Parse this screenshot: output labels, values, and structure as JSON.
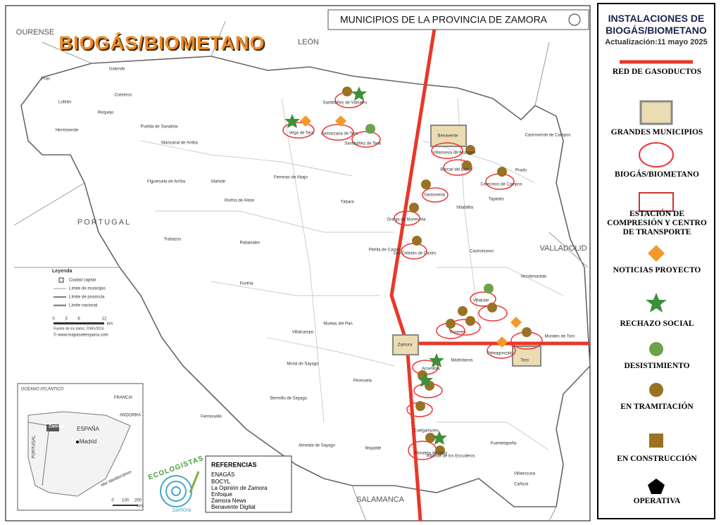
{
  "map_title": "MUNICIPIOS DE LA PROVINCIA DE ZAMORA",
  "overlay_title": "BIOGÁS/BIOMETANO",
  "regions": [
    "OURENSE",
    "LEÓN",
    "PORTUGAL",
    "VALLADOLID",
    "SALAMANCA"
  ],
  "panel": {
    "title": "INSTALACIONES DE BIOGÁS/BIOMETANO",
    "update": "Actualización:11 mayo 2025",
    "legend": [
      "RED DE GASODUCTOS",
      "GRANDES MUNICIPIOS",
      "BIOGÁS/BIOMETANO",
      "ESTACIÓN DE COMPRESIÓN Y CENTRO DE TRANSPORTE",
      "NOTICIAS PROYECTO",
      "RECHAZO SOCIAL",
      "DESISTIMIENTO",
      "EN TRAMITACIÓN",
      "EN CONSTRUCCIÓN",
      "OPERATIVA"
    ]
  },
  "map_legend": {
    "title": "Leyenda",
    "items": [
      "Ciudad capital",
      "Límite de municipio",
      "Límite de provincia",
      "Límite nacional"
    ],
    "scale": [
      "0",
      "3",
      "6",
      "12"
    ],
    "unit": "km",
    "source": "Fuente de los datos: CNIG/2016",
    "site": "© www.mapasdeespana.com"
  },
  "inset": {
    "labels": [
      "OCÉANO ATLÁNTICO",
      "FRANCIA",
      "ANDORRA",
      "PORTUGAL",
      "ESPAÑA",
      "Zamora",
      "Madrid",
      "Mar Mediterráneo"
    ],
    "scale": [
      "0",
      "100",
      "200"
    ],
    "unit": "km"
  },
  "references": {
    "title": "REFERENCIAS",
    "items": [
      "ENAGÁS",
      "BOCYL",
      "La Opinión de Zamora",
      "Enfoque",
      "Zamora News",
      "Benavente Digital"
    ]
  },
  "logo": {
    "text": "ECOLOGISTAS",
    "sub": "zamora"
  },
  "municipalities": [
    "Pías",
    "Lubián",
    "Hermisende",
    "Requejo",
    "Cobreros",
    "Galende",
    "Puebla de Sanabria",
    "Manzanal de Arriba",
    "Figueruela de Arriba",
    "Mahíde",
    "Riofrío de Aliste",
    "Trabazos",
    "Rabanales",
    "Fonfría",
    "Ferreras de Abajo",
    "Tábara",
    "Perilla de Castro",
    "Muelas del Pan",
    "Villalcampo",
    "Moral de Sayago",
    "Bermillo de Sayago",
    "Fermoselle",
    "Pereruela",
    "Almeida de Sayago",
    "Mayalde",
    "Villamor de los Escuderos",
    "Fuentelapeña",
    "Villaescusa",
    "Cañizal",
    "Castronuevo",
    "Castroverde de Campos",
    "Prado",
    "Tapioles",
    "Villafáfila",
    "Vezdemarbán",
    "Madridanos",
    "Vega de Tera",
    "Camarzana de Tera",
    "Santibáñez de Tera",
    "Santibáñez de Vidriales",
    "Santovenia",
    "Granja de Moreruela",
    "San Cebrián de Castro",
    "Villalube",
    "Coreses",
    "Morales de Toro",
    "Peleagonzalo",
    "Arcenillas",
    "Moraleja del Vino",
    "Cerecinos de Campos",
    "Barcial del Barco",
    "Villanueva de Azoague",
    "Cuelgamures",
    "Benavente",
    "Zamora",
    "Toro"
  ]
}
